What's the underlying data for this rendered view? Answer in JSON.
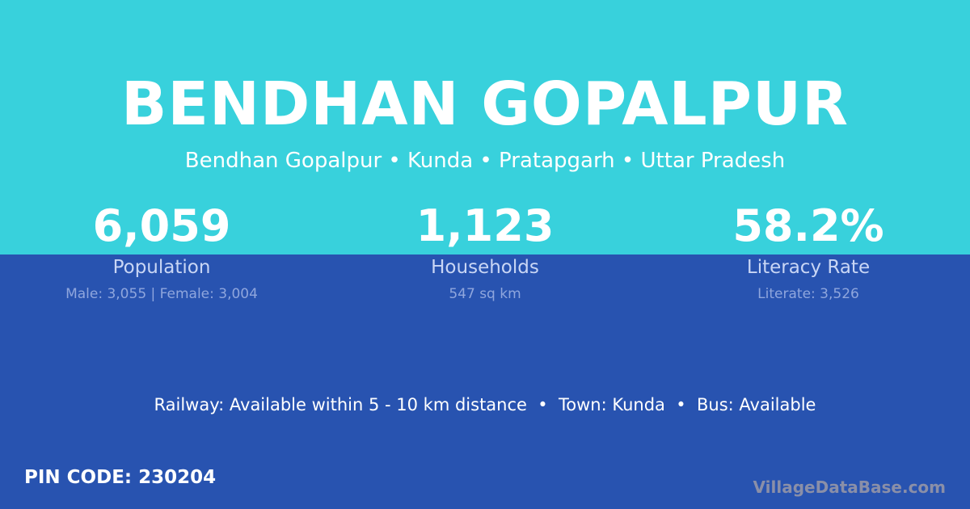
{
  "title": "BENDHAN GOPALPUR",
  "subtitle": "Bendhan Gopalpur • Kunda • Pratapgarh • Uttar Pradesh",
  "stats": [
    {
      "value": "6,059",
      "label": "Population",
      "detail": "Male: 3,055 | Female: 3,004"
    },
    {
      "value": "1,123",
      "label": "Households",
      "detail": "547 sq km"
    },
    {
      "value": "58.2%",
      "label": "Literacy Rate",
      "detail": "Literate: 3,526"
    }
  ],
  "info": "Railway: Available within 5 - 10 km distance  •  Town: Kunda  •  Bus: Available",
  "pin": "PIN CODE: 230204",
  "brand": "VillageDataBase.com",
  "colors": {
    "top": "#38d1dc",
    "bottom": "#2853b0"
  }
}
